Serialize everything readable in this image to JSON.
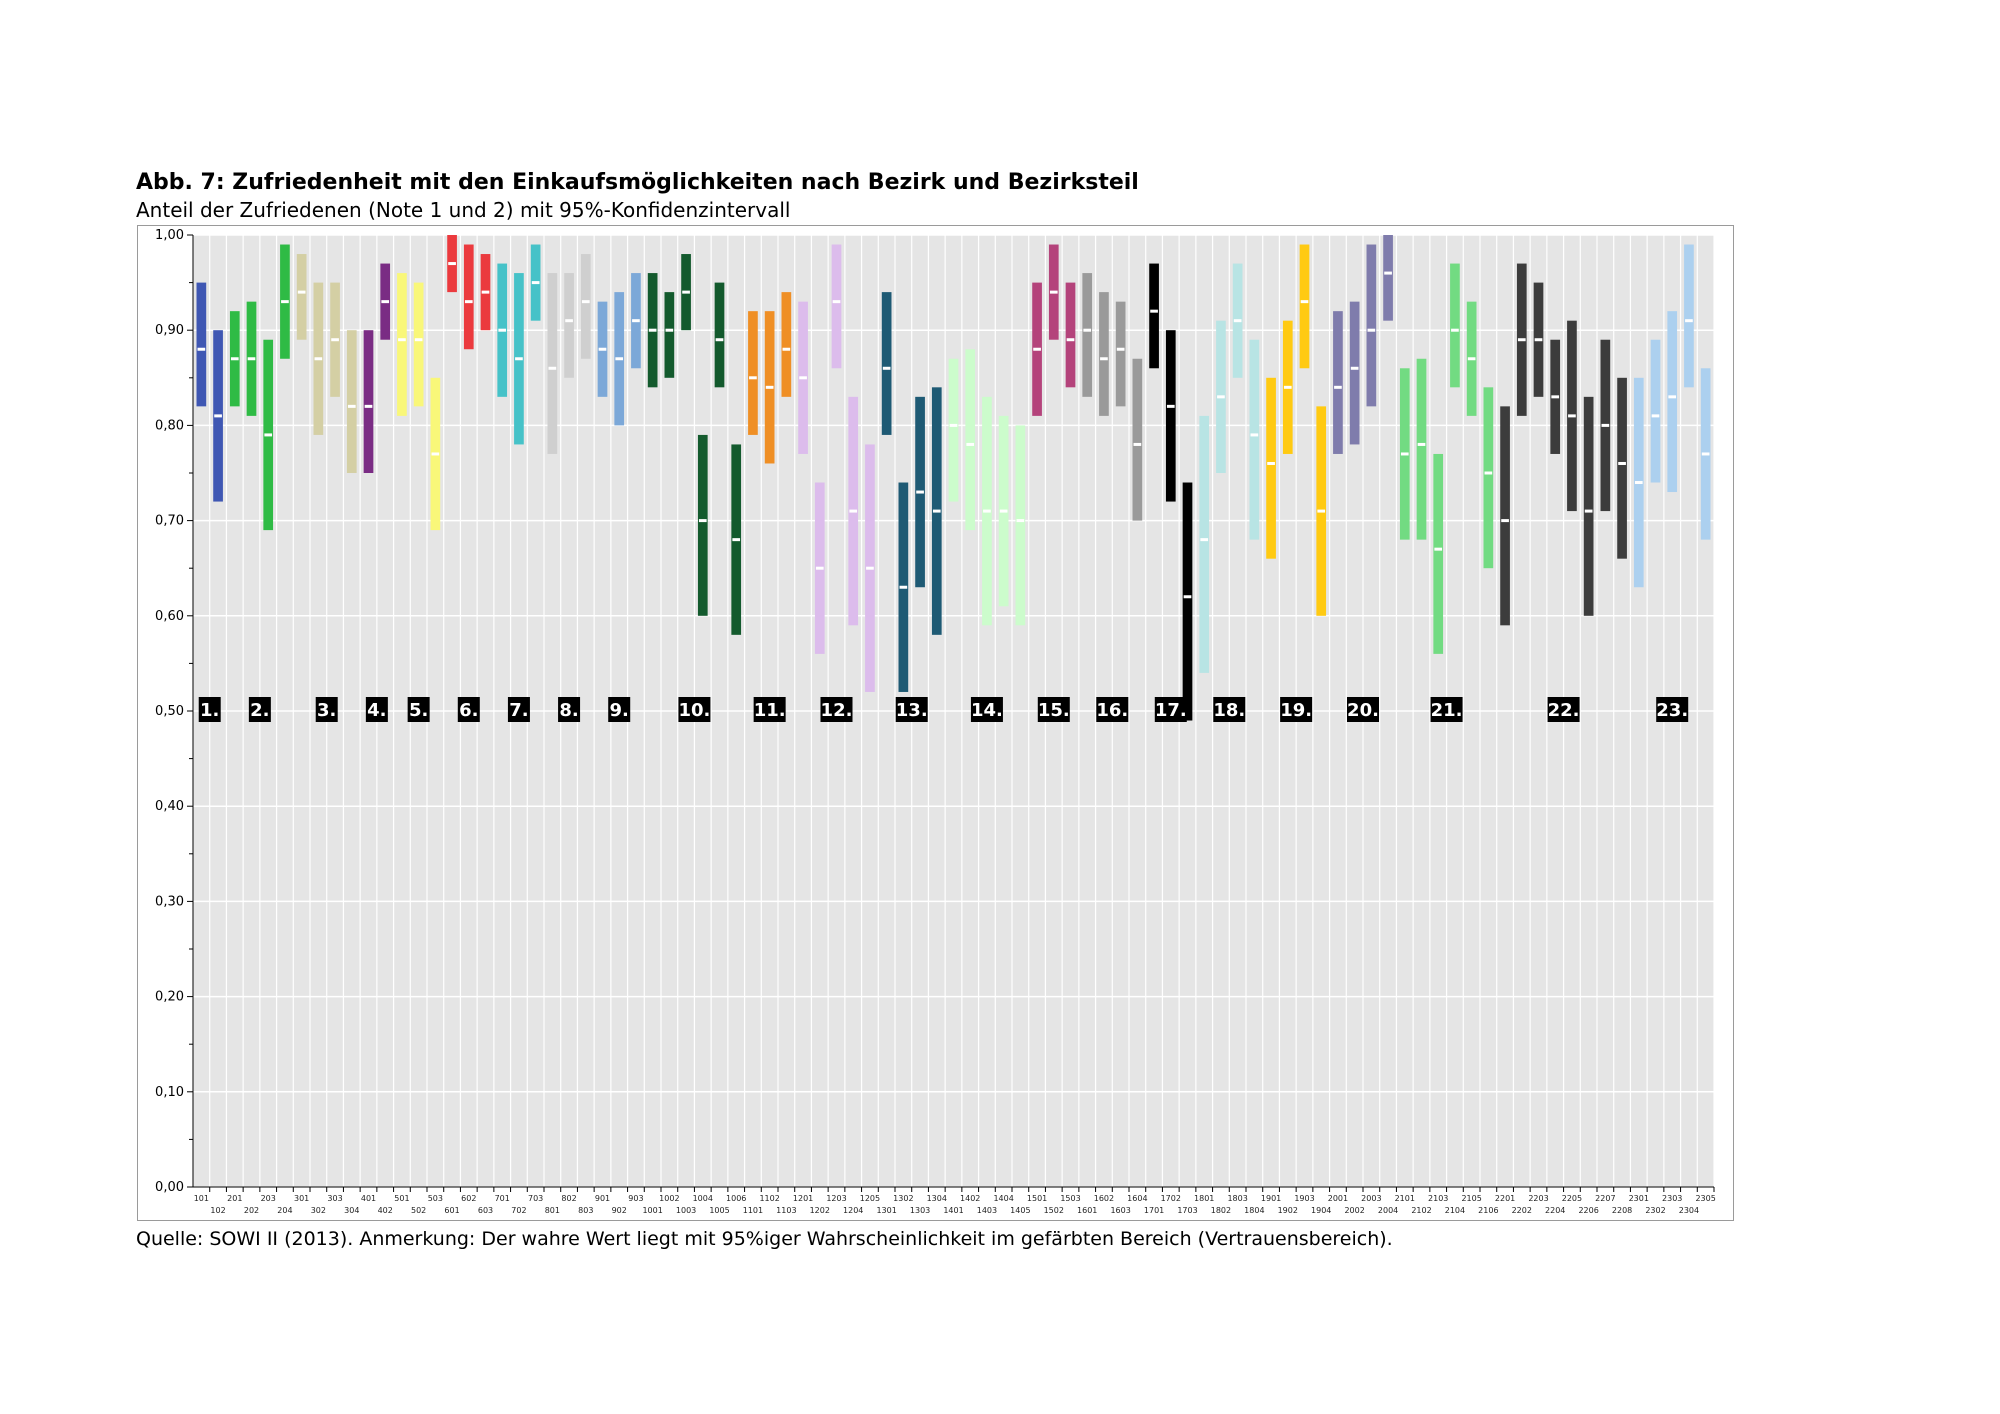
{
  "title": "Abb. 7: Zufriedenheit mit den Einkaufsmöglichkeiten nach Bezirk und Bezirksteil",
  "subtitle": "Anteil der Zufriedenen (Note 1 und 2) mit 95%-Konfidenzintervall",
  "source": "Quelle: SOWI II (2013). Anmerkung: Der wahre Wert liegt mit 95%iger Wahrscheinlichkeit im gefärbten Bereich (Vertrauensbereich).",
  "chart_data": {
    "type": "bar",
    "subtype": "confidence-interval",
    "ylim": [
      0,
      1
    ],
    "yticks": [
      "0,00",
      "0,10",
      "0,20",
      "0,30",
      "0,40",
      "0,50",
      "0,60",
      "0,70",
      "0,80",
      "0,90",
      "1,00"
    ],
    "grid": true,
    "categories": [
      "101",
      "102",
      "201",
      "202",
      "203",
      "204",
      "301",
      "302",
      "303",
      "304",
      "401",
      "402",
      "501",
      "502",
      "503",
      "601",
      "602",
      "603",
      "701",
      "702",
      "703",
      "801",
      "802",
      "803",
      "901",
      "902",
      "903",
      "1001",
      "1002",
      "1003",
      "1004",
      "1005",
      "1006",
      "1101",
      "1102",
      "1103",
      "1201",
      "1202",
      "1203",
      "1204",
      "1205",
      "1301",
      "1302",
      "1303",
      "1304",
      "1401",
      "1402",
      "1403",
      "1404",
      "1405",
      "1501",
      "1502",
      "1503",
      "1601",
      "1602",
      "1603",
      "1604",
      "1701",
      "1702",
      "1703",
      "1801",
      "1802",
      "1803",
      "1804",
      "1901",
      "1902",
      "1903",
      "1904",
      "2001",
      "2002",
      "2003",
      "2004",
      "2101",
      "2102",
      "2103",
      "2104",
      "2105",
      "2106",
      "2201",
      "2202",
      "2203",
      "2204",
      "2205",
      "2206",
      "2207",
      "2208",
      "2301",
      "2302",
      "2303",
      "2304",
      "2305"
    ],
    "lower": [
      0.82,
      0.72,
      0.82,
      0.81,
      0.69,
      0.87,
      0.89,
      0.79,
      0.83,
      0.75,
      0.75,
      0.89,
      0.81,
      0.82,
      0.69,
      0.94,
      0.88,
      0.9,
      0.83,
      0.78,
      0.91,
      0.77,
      0.85,
      0.87,
      0.83,
      0.8,
      0.86,
      0.84,
      0.85,
      0.9,
      0.6,
      0.84,
      0.58,
      0.79,
      0.76,
      0.83,
      0.77,
      0.56,
      0.86,
      0.59,
      0.52,
      0.79,
      0.52,
      0.63,
      0.58,
      0.72,
      0.69,
      0.59,
      0.61,
      0.59,
      0.81,
      0.89,
      0.84,
      0.83,
      0.81,
      0.82,
      0.7,
      0.86,
      0.72,
      0.49,
      0.54,
      0.75,
      0.85,
      0.68,
      0.66,
      0.77,
      0.86,
      0.6,
      0.77,
      0.78,
      0.82,
      0.91,
      0.68,
      0.68,
      0.56,
      0.84,
      0.81,
      0.65,
      0.59,
      0.81,
      0.83,
      0.77,
      0.71,
      0.6,
      0.71,
      0.66,
      0.63,
      0.74,
      0.73,
      0.84,
      0.68
    ],
    "estimate": [
      0.88,
      0.81,
      0.87,
      0.87,
      0.79,
      0.93,
      0.94,
      0.87,
      0.89,
      0.82,
      0.82,
      0.93,
      0.89,
      0.89,
      0.77,
      0.97,
      0.93,
      0.94,
      0.9,
      0.87,
      0.95,
      0.86,
      0.91,
      0.93,
      0.88,
      0.87,
      0.91,
      0.9,
      0.9,
      0.94,
      0.7,
      0.89,
      0.68,
      0.85,
      0.84,
      0.88,
      0.85,
      0.65,
      0.93,
      0.71,
      0.65,
      0.86,
      0.63,
      0.73,
      0.71,
      0.8,
      0.78,
      0.71,
      0.71,
      0.7,
      0.88,
      0.94,
      0.89,
      0.9,
      0.87,
      0.88,
      0.78,
      0.92,
      0.82,
      0.62,
      0.68,
      0.83,
      0.91,
      0.79,
      0.76,
      0.84,
      0.93,
      0.71,
      0.84,
      0.86,
      0.9,
      0.96,
      0.77,
      0.78,
      0.67,
      0.9,
      0.87,
      0.75,
      0.7,
      0.89,
      0.89,
      0.83,
      0.81,
      0.71,
      0.8,
      0.76,
      0.74,
      0.81,
      0.83,
      0.91,
      0.77
    ],
    "upper": [
      0.95,
      0.9,
      0.92,
      0.93,
      0.89,
      0.99,
      0.98,
      0.95,
      0.95,
      0.9,
      0.9,
      0.97,
      0.96,
      0.95,
      0.85,
      1.0,
      0.99,
      0.98,
      0.97,
      0.96,
      0.99,
      0.96,
      0.96,
      0.98,
      0.93,
      0.94,
      0.96,
      0.96,
      0.94,
      0.98,
      0.79,
      0.95,
      0.78,
      0.92,
      0.92,
      0.94,
      0.93,
      0.74,
      0.99,
      0.83,
      0.78,
      0.94,
      0.74,
      0.83,
      0.84,
      0.87,
      0.88,
      0.83,
      0.81,
      0.8,
      0.95,
      0.99,
      0.95,
      0.96,
      0.94,
      0.93,
      0.87,
      0.97,
      0.9,
      0.74,
      0.81,
      0.91,
      0.97,
      0.89,
      0.85,
      0.91,
      0.99,
      0.82,
      0.92,
      0.93,
      0.99,
      1.0,
      0.86,
      0.87,
      0.77,
      0.97,
      0.93,
      0.84,
      0.82,
      0.97,
      0.95,
      0.89,
      0.91,
      0.83,
      0.89,
      0.85,
      0.85,
      0.89,
      0.92,
      0.99,
      0.86
    ],
    "group_index": [
      1,
      1,
      2,
      2,
      2,
      2,
      3,
      3,
      3,
      3,
      4,
      4,
      5,
      5,
      5,
      6,
      6,
      6,
      7,
      7,
      7,
      8,
      8,
      8,
      9,
      9,
      9,
      10,
      10,
      10,
      10,
      10,
      10,
      11,
      11,
      11,
      12,
      12,
      12,
      12,
      12,
      13,
      13,
      13,
      13,
      14,
      14,
      14,
      14,
      14,
      15,
      15,
      15,
      16,
      16,
      16,
      16,
      17,
      17,
      17,
      18,
      18,
      18,
      18,
      19,
      19,
      19,
      19,
      20,
      20,
      20,
      20,
      21,
      21,
      21,
      21,
      21,
      21,
      22,
      22,
      22,
      22,
      22,
      22,
      22,
      22,
      23,
      23,
      23,
      23,
      23
    ],
    "groups": [
      {
        "label": "1.",
        "color": "#3f57b3"
      },
      {
        "label": "2.",
        "color": "#2fbb45"
      },
      {
        "label": "3.",
        "color": "#d4cfa4"
      },
      {
        "label": "4.",
        "color": "#7a2c84"
      },
      {
        "label": "5.",
        "color": "#f9f779"
      },
      {
        "label": "6.",
        "color": "#eb3a3e"
      },
      {
        "label": "7.",
        "color": "#46c2c8"
      },
      {
        "label": "8.",
        "color": "#cfcfcf"
      },
      {
        "label": "9.",
        "color": "#7ca8d8"
      },
      {
        "label": "10.",
        "color": "#135a2d"
      },
      {
        "label": "11.",
        "color": "#ef8f25"
      },
      {
        "label": "12.",
        "color": "#dcbcec"
      },
      {
        "label": "13.",
        "color": "#1e5a74"
      },
      {
        "label": "14.",
        "color": "#ccfccc"
      },
      {
        "label": "15.",
        "color": "#b4437b"
      },
      {
        "label": "16.",
        "color": "#9a9a9a"
      },
      {
        "label": "17.",
        "color": "#000000"
      },
      {
        "label": "18.",
        "color": "#b8e4e4"
      },
      {
        "label": "19.",
        "color": "#ffca12"
      },
      {
        "label": "20.",
        "color": "#7f7cac"
      },
      {
        "label": "21.",
        "color": "#72db82"
      },
      {
        "label": "22.",
        "color": "#3c3c3c"
      },
      {
        "label": "23.",
        "color": "#acd0ef"
      }
    ],
    "colors": {
      "plot_bg": "#e5e5e5",
      "grid": "#ffffff",
      "frame": "#9a9a9a",
      "label_bg": "#000000",
      "estimate_mark": "#ffffff"
    }
  }
}
